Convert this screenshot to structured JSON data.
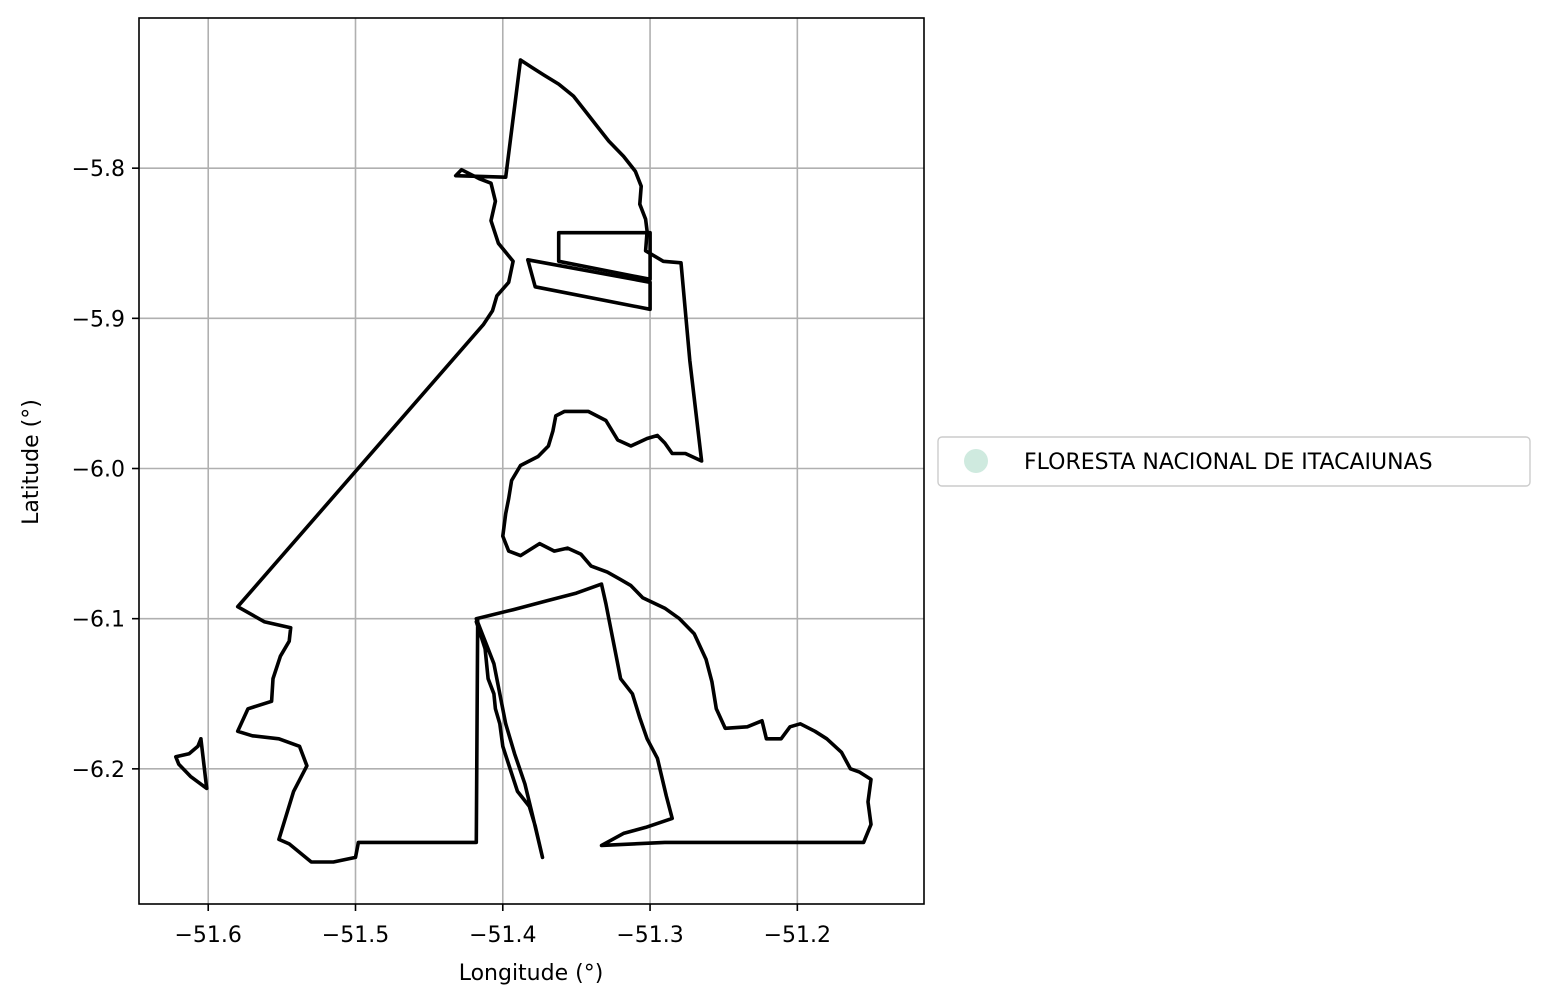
{
  "chart_data": {
    "type": "map",
    "xlabel": "Longitude (°)",
    "ylabel": "Latitude (°)",
    "xlim": [
      -51.647,
      -51.114
    ],
    "ylim": [
      -6.29,
      -5.7
    ],
    "x_ticks": [
      -51.6,
      -51.5,
      -51.4,
      -51.3,
      -51.2
    ],
    "x_tick_labels": [
      "−51.6",
      "−51.5",
      "−51.4",
      "−51.3",
      "−51.2"
    ],
    "y_ticks": [
      -5.8,
      -5.9,
      -6.0,
      -6.1,
      -6.2
    ],
    "y_tick_labels": [
      "−5.8",
      "−5.9",
      "−6.0",
      "−6.1",
      "−6.2"
    ],
    "grid": true,
    "legend_position": "right",
    "colors": {
      "boundary": "#000000",
      "legend_marker": "#cfeadf",
      "grid": "#b0b0b0"
    },
    "legend": [
      {
        "label": "FLORESTA NACIONAL DE ITACAIUNAS",
        "marker": "circle",
        "color": "#cfeadf"
      }
    ],
    "polygons": [
      {
        "name": "main-boundary",
        "points": [
          [
            -51.388,
            -5.728
          ],
          [
            -51.38,
            -5.733
          ],
          [
            -51.372,
            -5.738
          ],
          [
            -51.362,
            -5.744
          ],
          [
            -51.352,
            -5.752
          ],
          [
            -51.344,
            -5.762
          ],
          [
            -51.336,
            -5.772
          ],
          [
            -51.328,
            -5.782
          ],
          [
            -51.318,
            -5.792
          ],
          [
            -51.31,
            -5.802
          ],
          [
            -51.306,
            -5.812
          ],
          [
            -51.307,
            -5.824
          ],
          [
            -51.303,
            -5.834
          ],
          [
            -51.302,
            -5.842
          ],
          [
            -51.303,
            -5.855
          ],
          [
            -51.291,
            -5.862
          ],
          [
            -51.279,
            -5.863
          ],
          [
            -51.273,
            -5.928
          ],
          [
            -51.265,
            -5.995
          ],
          [
            -51.276,
            -5.99
          ],
          [
            -51.285,
            -5.99
          ],
          [
            -51.29,
            -5.983
          ],
          [
            -51.295,
            -5.978
          ],
          [
            -51.302,
            -5.98
          ],
          [
            -51.313,
            -5.985
          ],
          [
            -51.322,
            -5.981
          ],
          [
            -51.33,
            -5.968
          ],
          [
            -51.342,
            -5.962
          ],
          [
            -51.358,
            -5.962
          ],
          [
            -51.364,
            -5.965
          ],
          [
            -51.366,
            -5.975
          ],
          [
            -51.369,
            -5.985
          ],
          [
            -51.376,
            -5.992
          ],
          [
            -51.388,
            -5.998
          ],
          [
            -51.394,
            -6.008
          ],
          [
            -51.396,
            -6.02
          ],
          [
            -51.398,
            -6.03
          ],
          [
            -51.4,
            -6.045
          ],
          [
            -51.396,
            -6.055
          ],
          [
            -51.388,
            -6.058
          ],
          [
            -51.375,
            -6.05
          ],
          [
            -51.365,
            -6.055
          ],
          [
            -51.356,
            -6.053
          ],
          [
            -51.347,
            -6.057
          ],
          [
            -51.34,
            -6.065
          ],
          [
            -51.329,
            -6.069
          ],
          [
            -51.32,
            -6.074
          ],
          [
            -51.313,
            -6.078
          ],
          [
            -51.305,
            -6.086
          ],
          [
            -51.29,
            -6.093
          ],
          [
            -51.28,
            -6.1
          ],
          [
            -51.27,
            -6.11
          ],
          [
            -51.262,
            -6.127
          ],
          [
            -51.258,
            -6.142
          ],
          [
            -51.255,
            -6.16
          ],
          [
            -51.249,
            -6.173
          ],
          [
            -51.234,
            -6.172
          ],
          [
            -51.224,
            -6.168
          ],
          [
            -51.221,
            -6.18
          ],
          [
            -51.211,
            -6.18
          ],
          [
            -51.205,
            -6.172
          ],
          [
            -51.198,
            -6.17
          ],
          [
            -51.188,
            -6.175
          ],
          [
            -51.18,
            -6.18
          ],
          [
            -51.17,
            -6.189
          ],
          [
            -51.164,
            -6.2
          ],
          [
            -51.158,
            -6.202
          ],
          [
            -51.15,
            -6.207
          ],
          [
            -51.152,
            -6.222
          ],
          [
            -51.15,
            -6.237
          ],
          [
            -51.155,
            -6.249
          ],
          [
            -51.252,
            -6.249
          ],
          [
            -51.29,
            -6.249
          ],
          [
            -51.333,
            -6.251
          ],
          [
            -51.318,
            -6.243
          ],
          [
            -51.303,
            -6.239
          ],
          [
            -51.285,
            -6.233
          ],
          [
            -51.289,
            -6.218
          ],
          [
            -51.295,
            -6.193
          ],
          [
            -51.302,
            -6.18
          ],
          [
            -51.307,
            -6.166
          ],
          [
            -51.312,
            -6.15
          ],
          [
            -51.32,
            -6.14
          ],
          [
            -51.323,
            -6.125
          ],
          [
            -51.327,
            -6.105
          ],
          [
            -51.33,
            -6.09
          ],
          [
            -51.333,
            -6.077
          ],
          [
            -51.35,
            -6.083
          ],
          [
            -51.37,
            -6.088
          ],
          [
            -51.393,
            -6.094
          ],
          [
            -51.418,
            -6.1
          ],
          [
            -51.412,
            -6.115
          ],
          [
            -51.406,
            -6.13
          ],
          [
            -51.402,
            -6.15
          ],
          [
            -51.398,
            -6.17
          ],
          [
            -51.392,
            -6.19
          ],
          [
            -51.385,
            -6.21
          ],
          [
            -51.38,
            -6.23
          ],
          [
            -51.373,
            -6.259
          ],
          [
            -51.378,
            -6.238
          ],
          [
            -51.382,
            -6.225
          ],
          [
            -51.39,
            -6.215
          ],
          [
            -51.395,
            -6.2
          ],
          [
            -51.4,
            -6.185
          ],
          [
            -51.402,
            -6.17
          ],
          [
            -51.405,
            -6.16
          ],
          [
            -51.406,
            -6.15
          ],
          [
            -51.41,
            -6.14
          ],
          [
            -51.412,
            -6.12
          ],
          [
            -51.418,
            -6.102
          ],
          [
            -51.417,
            -6.1
          ],
          [
            -51.418,
            -6.249
          ],
          [
            -51.498,
            -6.249
          ],
          [
            -51.5,
            -6.259
          ],
          [
            -51.515,
            -6.262
          ],
          [
            -51.53,
            -6.262
          ],
          [
            -51.545,
            -6.25
          ],
          [
            -51.552,
            -6.247
          ],
          [
            -51.542,
            -6.215
          ],
          [
            -51.533,
            -6.198
          ],
          [
            -51.538,
            -6.185
          ],
          [
            -51.552,
            -6.18
          ],
          [
            -51.57,
            -6.178
          ],
          [
            -51.58,
            -6.175
          ],
          [
            -51.573,
            -6.16
          ],
          [
            -51.557,
            -6.155
          ],
          [
            -51.556,
            -6.14
          ],
          [
            -51.551,
            -6.125
          ],
          [
            -51.545,
            -6.115
          ],
          [
            -51.544,
            -6.106
          ],
          [
            -51.562,
            -6.102
          ],
          [
            -51.58,
            -6.092
          ],
          [
            -51.413,
            -5.904
          ],
          [
            -51.407,
            -5.895
          ],
          [
            -51.404,
            -5.885
          ],
          [
            -51.396,
            -5.876
          ],
          [
            -51.393,
            -5.862
          ],
          [
            -51.403,
            -5.85
          ],
          [
            -51.408,
            -5.835
          ],
          [
            -51.405,
            -5.822
          ],
          [
            -51.408,
            -5.81
          ],
          [
            -51.416,
            -5.807
          ],
          [
            -51.428,
            -5.801
          ],
          [
            -51.432,
            -5.805
          ],
          [
            -51.398,
            -5.806
          ],
          [
            -51.388,
            -5.728
          ]
        ]
      },
      {
        "name": "inner-strip-upper",
        "points": [
          [
            -51.362,
            -5.843
          ],
          [
            -51.3,
            -5.843
          ],
          [
            -51.3,
            -5.874
          ],
          [
            -51.362,
            -5.862
          ],
          [
            -51.362,
            -5.843
          ]
        ]
      },
      {
        "name": "inner-strip-lower",
        "points": [
          [
            -51.383,
            -5.861
          ],
          [
            -51.3,
            -5.876
          ],
          [
            -51.3,
            -5.894
          ],
          [
            -51.378,
            -5.879
          ],
          [
            -51.383,
            -5.861
          ]
        ]
      },
      {
        "name": "west-fragment",
        "points": [
          [
            -51.605,
            -6.18
          ],
          [
            -51.601,
            -6.213
          ],
          [
            -51.612,
            -6.205
          ],
          [
            -51.62,
            -6.197
          ],
          [
            -51.622,
            -6.192
          ],
          [
            -51.613,
            -6.19
          ],
          [
            -51.607,
            -6.185
          ],
          [
            -51.605,
            -6.18
          ]
        ]
      }
    ]
  }
}
